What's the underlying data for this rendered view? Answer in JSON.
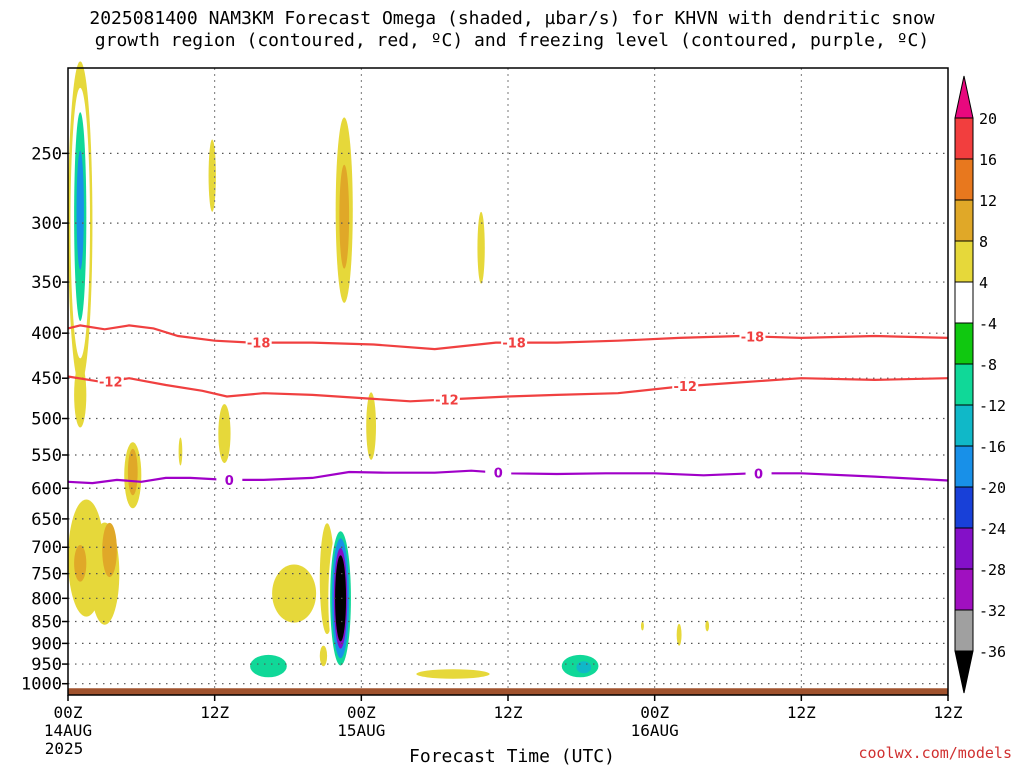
{
  "title": {
    "line1": "2025081400 NAM3KM Forecast Omega (shaded, µbar/s) for KHVN with dendritic snow",
    "line2": "growth region (contoured, red, ºC) and freezing level (contoured, purple, ºC)"
  },
  "credit": "coolwx.com/models",
  "chart_data": {
    "type": "heatmap",
    "xlabel": "Forecast Time (UTC)",
    "x_unit": "hours since 2025081400",
    "xlim": [
      0,
      72
    ],
    "x_ticks": [
      {
        "hour": 0,
        "label": "00Z",
        "sub": "14AUG",
        "sub2": "2025"
      },
      {
        "hour": 12,
        "label": "12Z"
      },
      {
        "hour": 24,
        "label": "00Z",
        "sub": "15AUG"
      },
      {
        "hour": 36,
        "label": "12Z"
      },
      {
        "hour": 48,
        "label": "00Z",
        "sub": "16AUG"
      },
      {
        "hour": 60,
        "label": "12Z"
      }
    ],
    "y_unit": "hPa (log-pressure axis, top ~200)",
    "ylim": [
      1030,
      200
    ],
    "y_ticks": [
      250,
      300,
      350,
      400,
      450,
      500,
      550,
      600,
      650,
      700,
      750,
      800,
      850,
      900,
      950,
      1000
    ],
    "grid": true,
    "colorbar": {
      "levels": [
        20,
        16,
        12,
        8,
        4,
        -4,
        -8,
        -12,
        -16,
        -20,
        -24,
        -28,
        -32,
        -36
      ],
      "colors": [
        "#e8087e",
        "#f23e3e",
        "#e8781e",
        "#e0a828",
        "#e6d83a",
        "#ffffff",
        "#10c810",
        "#10d898",
        "#10b8c8",
        "#1890e8",
        "#1840d8",
        "#8410c8",
        "#a010c0",
        "#a0a0a0",
        "#000000"
      ]
    },
    "contours": [
      {
        "label": "-18",
        "color": "#f04040",
        "points": [
          [
            0,
            395
          ],
          [
            1,
            392
          ],
          [
            3,
            396
          ],
          [
            5,
            392
          ],
          [
            7,
            395
          ],
          [
            9,
            403
          ],
          [
            12,
            408
          ],
          [
            15,
            410
          ],
          [
            20,
            410
          ],
          [
            25,
            412
          ],
          [
            30,
            417
          ],
          [
            35,
            410
          ],
          [
            40,
            410
          ],
          [
            45,
            408
          ],
          [
            50,
            405
          ],
          [
            55,
            403
          ],
          [
            60,
            405
          ],
          [
            66,
            403
          ],
          [
            72,
            405
          ]
        ],
        "label_hours": [
          15.6,
          36.5,
          56
        ]
      },
      {
        "label": "-12",
        "color": "#f04040",
        "points": [
          [
            0,
            448
          ],
          [
            3,
            455
          ],
          [
            5,
            450
          ],
          [
            8,
            458
          ],
          [
            11,
            465
          ],
          [
            13,
            472
          ],
          [
            16,
            468
          ],
          [
            20,
            470
          ],
          [
            25,
            475
          ],
          [
            28,
            478
          ],
          [
            32,
            475
          ],
          [
            36,
            472
          ],
          [
            40,
            470
          ],
          [
            45,
            468
          ],
          [
            50,
            460
          ],
          [
            55,
            455
          ],
          [
            60,
            450
          ],
          [
            66,
            452
          ],
          [
            72,
            450
          ]
        ],
        "label_hours": [
          3.5,
          31,
          50.5
        ]
      },
      {
        "label": "0",
        "color": "#a000c8",
        "points": [
          [
            0,
            590
          ],
          [
            2,
            592
          ],
          [
            4,
            587
          ],
          [
            6,
            590
          ],
          [
            8,
            584
          ],
          [
            10,
            584
          ],
          [
            13,
            587
          ],
          [
            16,
            587
          ],
          [
            20,
            584
          ],
          [
            23,
            575
          ],
          [
            26,
            576
          ],
          [
            30,
            576
          ],
          [
            33,
            573
          ],
          [
            36,
            577
          ],
          [
            40,
            578
          ],
          [
            44,
            577
          ],
          [
            48,
            577
          ],
          [
            52,
            580
          ],
          [
            56,
            577
          ],
          [
            60,
            577
          ],
          [
            66,
            582
          ],
          [
            72,
            588
          ]
        ],
        "label_hours": [
          13.2,
          35.2,
          56.5
        ]
      }
    ],
    "regions": [
      {
        "t": 1.0,
        "p": 300,
        "dt": 1.0,
        "dp": 125,
        "value": 4
      },
      {
        "t": 1.0,
        "p": 300,
        "dt": 0.8,
        "dp": 105,
        "value": -4
      },
      {
        "t": 1.0,
        "p": 295,
        "dt": 0.5,
        "dp": 80,
        "value": -12
      },
      {
        "t": 1.0,
        "p": 290,
        "dt": 0.3,
        "dp": 45,
        "value": -20
      },
      {
        "t": 5.1,
        "p": 260,
        "dt": 0.7,
        "dp": 60,
        "value": -4
      },
      {
        "t": 11.8,
        "p": 265,
        "dt": 0.3,
        "dp": 25,
        "value": 4
      },
      {
        "t": 13.3,
        "p": 265,
        "dt": 0.15,
        "dp": 20,
        "value": -4
      },
      {
        "t": 19.7,
        "p": 235,
        "dt": 0.35,
        "dp": 15,
        "value": -4
      },
      {
        "t": 22.6,
        "p": 290,
        "dt": 0.7,
        "dp": 70,
        "value": 4
      },
      {
        "t": 22.6,
        "p": 295,
        "dt": 0.4,
        "dp": 40,
        "value": 8
      },
      {
        "t": 33.8,
        "p": 320,
        "dt": 0.3,
        "dp": 30,
        "value": 4
      },
      {
        "t": 6.1,
        "p": 435,
        "dt": 0.5,
        "dp": 45,
        "value": -4
      },
      {
        "t": 14.0,
        "p": 420,
        "dt": 0.3,
        "dp": 35,
        "value": -4
      },
      {
        "t": 1.0,
        "p": 470,
        "dt": 0.5,
        "dp": 40,
        "value": 4
      },
      {
        "t": 5.3,
        "p": 580,
        "dt": 0.7,
        "dp": 50,
        "value": 4
      },
      {
        "t": 5.3,
        "p": 575,
        "dt": 0.4,
        "dp": 35,
        "value": 8
      },
      {
        "t": 12.8,
        "p": 520,
        "dt": 0.5,
        "dp": 40,
        "value": 4
      },
      {
        "t": 9.2,
        "p": 545,
        "dt": 0.15,
        "dp": 20,
        "value": 4
      },
      {
        "t": 10.0,
        "p": 610,
        "dt": 0.15,
        "dp": 15,
        "value": -4
      },
      {
        "t": 24.8,
        "p": 510,
        "dt": 0.4,
        "dp": 45,
        "value": 4
      },
      {
        "t": 20.8,
        "p": 590,
        "dt": 0.35,
        "dp": 65,
        "value": -4
      },
      {
        "t": 1.5,
        "p": 720,
        "dt": 1.5,
        "dp": 110,
        "value": 4
      },
      {
        "t": 1.0,
        "p": 730,
        "dt": 0.5,
        "dp": 35,
        "value": 8
      },
      {
        "t": 3.0,
        "p": 750,
        "dt": 1.2,
        "dp": 100,
        "value": 4
      },
      {
        "t": 3.4,
        "p": 705,
        "dt": 0.6,
        "dp": 50,
        "value": 8
      },
      {
        "t": 18.5,
        "p": 790,
        "dt": 1.8,
        "dp": 60,
        "value": 4
      },
      {
        "t": 21.2,
        "p": 760,
        "dt": 0.6,
        "dp": 110,
        "value": 4
      },
      {
        "t": 22.3,
        "p": 800,
        "dt": 1.0,
        "dp": 150,
        "value": -4
      },
      {
        "t": 22.3,
        "p": 800,
        "dt": 0.85,
        "dp": 140,
        "value": -12
      },
      {
        "t": 22.3,
        "p": 800,
        "dt": 0.7,
        "dp": 125,
        "value": -20
      },
      {
        "t": 22.3,
        "p": 800,
        "dt": 0.55,
        "dp": 105,
        "value": -28
      },
      {
        "t": 22.3,
        "p": 800,
        "dt": 0.45,
        "dp": 90,
        "value": -36
      },
      {
        "t": 16.2,
        "p": 950,
        "dt": 2.1,
        "dp": 40,
        "value": -4
      },
      {
        "t": 16.4,
        "p": 955,
        "dt": 1.5,
        "dp": 28,
        "value": -12
      },
      {
        "t": 20.9,
        "p": 930,
        "dt": 0.3,
        "dp": 25,
        "value": 4
      },
      {
        "t": 31.5,
        "p": 975,
        "dt": 3.0,
        "dp": 12,
        "value": 4
      },
      {
        "t": 41.7,
        "p": 950,
        "dt": 2.2,
        "dp": 40,
        "value": -4
      },
      {
        "t": 41.9,
        "p": 955,
        "dt": 1.5,
        "dp": 28,
        "value": -12
      },
      {
        "t": 42.2,
        "p": 958,
        "dt": 0.6,
        "dp": 15,
        "value": -16
      },
      {
        "t": 48.2,
        "p": 910,
        "dt": 0.2,
        "dp": 35,
        "value": -4
      },
      {
        "t": 50.0,
        "p": 880,
        "dt": 0.2,
        "dp": 25,
        "value": 4
      },
      {
        "t": 52.3,
        "p": 860,
        "dt": 0.15,
        "dp": 12,
        "value": 4
      },
      {
        "t": 47.0,
        "p": 860,
        "dt": 0.12,
        "dp": 10,
        "value": 4
      }
    ],
    "terrain": {
      "color": "#a0522d",
      "top_hpa": 1012,
      "bottom_hpa": 1030
    }
  }
}
